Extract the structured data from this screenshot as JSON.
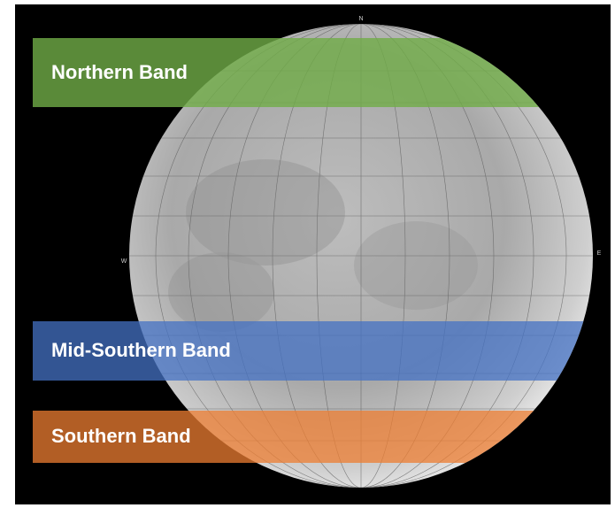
{
  "bands": [
    {
      "label": "Northern Band"
    },
    {
      "label": "Mid-Southern Band"
    },
    {
      "label": "Southern Band"
    }
  ],
  "compass": {
    "north": "N",
    "west": "W",
    "east": "E"
  }
}
